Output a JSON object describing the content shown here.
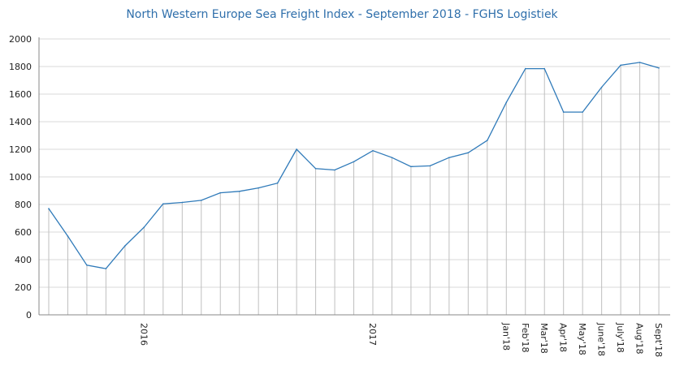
{
  "chart_data": {
    "type": "line",
    "title": "North Western Europe Sea Freight Index - September  2018 - FGHS Logistiek",
    "xlabel": "",
    "ylabel": "",
    "ylim": [
      0,
      2000
    ],
    "yticks": [
      0,
      200,
      400,
      600,
      800,
      1000,
      1200,
      1400,
      1600,
      1800,
      2000
    ],
    "grid": true,
    "legend": "none",
    "x_tick_labels": [
      {
        "index": 5,
        "label": "2016"
      },
      {
        "index": 17,
        "label": "2017"
      },
      {
        "index": 24,
        "label": "Jan'18"
      },
      {
        "index": 25,
        "label": "Feb'18"
      },
      {
        "index": 26,
        "label": "Mar'18"
      },
      {
        "index": 27,
        "label": "Apr'18"
      },
      {
        "index": 28,
        "label": "May'18"
      },
      {
        "index": 29,
        "label": "June'18"
      },
      {
        "index": 30,
        "label": "July'18"
      },
      {
        "index": 31,
        "label": "Aug'18"
      },
      {
        "index": 32,
        "label": "Sept'18"
      }
    ],
    "series": [
      {
        "name": "Sea Freight Index",
        "color": "#2f7ab9",
        "values": [
          770,
          570,
          360,
          335,
          500,
          635,
          805,
          815,
          830,
          885,
          895,
          920,
          955,
          1200,
          1060,
          1050,
          1110,
          1190,
          1140,
          1075,
          1080,
          1140,
          1175,
          1265,
          1540,
          1785,
          1785,
          1470,
          1470,
          1650,
          1810,
          1830,
          1790
        ]
      }
    ]
  }
}
